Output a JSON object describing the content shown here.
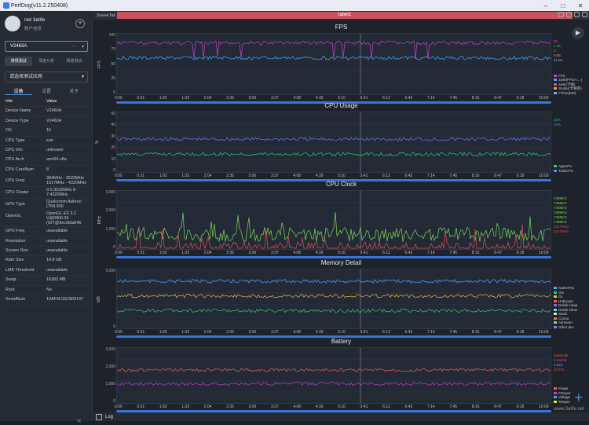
{
  "window": {
    "title": "PerfDog(v11.2.250408)"
  },
  "user": {
    "name": "net 3elife",
    "sub": "账户信息"
  },
  "device": {
    "name": "V2463A"
  },
  "mode_tabs": [
    "常规测试",
    "深度分析",
    "网络测试"
  ],
  "app_select": {
    "placeholder": "请选择测试应用"
  },
  "info_tabs": [
    "设备",
    "设置",
    "关于"
  ],
  "info_header": {
    "k": "Info",
    "v": "Value"
  },
  "info_rows": [
    {
      "k": "Device Name",
      "v": "V2460A"
    },
    {
      "k": "Device Type",
      "v": "V2463A"
    },
    {
      "k": "OS",
      "v": "15"
    },
    {
      "k": "CPU Type",
      "v": "sun"
    },
    {
      "k": "CPU Info",
      "v": "unknown"
    },
    {
      "k": "CPU Arch",
      "v": "arm64-v8a"
    },
    {
      "k": "CPU CoreNum",
      "v": "8"
    },
    {
      "k": "CPU Freq",
      "v": "384MHz - 3532MHz 1017MHz - 4320MHz"
    },
    {
      "k": "CPU Cluster",
      "v": "0-5:3532MHz 6-7:4320MHz"
    },
    {
      "k": "GPU Type",
      "v": "Qualcomm Adreno (TM) 830"
    },
    {
      "k": "OpenGL",
      "v": "OpenGL ES 3.2 V@0800.34 (GIT@3ec0bfa64b"
    },
    {
      "k": "GPU Freq",
      "v": "unavailable"
    },
    {
      "k": "Resolution",
      "v": "unavailable"
    },
    {
      "k": "Screen Size",
      "v": "unavailable"
    },
    {
      "k": "Ram Size",
      "v": "14.8 GB"
    },
    {
      "k": "LMK Threshold",
      "v": "unavailable"
    },
    {
      "k": "Swap",
      "v": "16383 MB"
    },
    {
      "k": "Root",
      "v": "No"
    },
    {
      "k": "SerialNum",
      "v": "10AF4U19JS0014T"
    }
  ],
  "scene": {
    "tab": "SceneTab",
    "label": "label1"
  },
  "x_ticks": [
    "0:00",
    "0:31",
    "1:02",
    "1:33",
    "2:04",
    "2:35",
    "3:06",
    "3:37",
    "4:08",
    "4:39",
    "5:10",
    "5:41",
    "6:12",
    "6:43",
    "7:14",
    "7:45",
    "8:16",
    "8:47",
    "9:18",
    "10:00"
  ],
  "charts": [
    {
      "title": "FPS",
      "ylabel": "FPS",
      "yticks": [
        "100",
        "75",
        "50",
        "25",
        "0"
      ],
      "legend": [
        "FPS",
        "Jank(FPS>=...)",
        "Jank(卡顿)",
        "Stutter(卡顿率)",
        "FTime(MS)"
      ],
      "right_values": [
        "90",
        "1.16",
        "0",
        "0.05",
        "41.93"
      ]
    },
    {
      "title": "CPU Usage",
      "ylabel": "%",
      "yticks": [
        "50",
        "40",
        "30",
        "20",
        "10",
        "0"
      ],
      "legend": [
        "AppCPU",
        "TotalCPU"
      ],
      "right_values": [
        "21%",
        "34%"
      ]
    },
    {
      "title": "CPU Clock",
      "ylabel": "MHz",
      "yticks": [
        "3,000",
        "2,000",
        "1,000",
        "0"
      ],
      "legend": [],
      "right_values": [
        "748MHz",
        "748MHz",
        "748MHz",
        "748MHz",
        "748MHz",
        "748MHz",
        "1017MHz",
        "1017MHz"
      ]
    },
    {
      "title": "Memory Detail",
      "ylabel": "MB",
      "yticks": [
        "5,000",
        "0"
      ],
      "legend": [
        "NativePss",
        "Gfx",
        "GL",
        "Unknown",
        "Dalvik Heap",
        "Dalvik Other",
        "Stack",
        "Cursor",
        "Ashmem",
        "Other dev"
      ],
      "right_values": []
    },
    {
      "title": "Battery",
      "ylabel": "",
      "yticks": [
        "3,000",
        "2,000",
        "1,000",
        "0"
      ],
      "legend": [
        "Power",
        "FPower",
        "Voltage",
        "Temper"
      ],
      "right_values": [
        "2160mW",
        "0.30mW",
        "3.82V",
        "37.5°C"
      ]
    }
  ],
  "status": {
    "log": "Log"
  },
  "watermark": "www.3elife.net",
  "colors": {
    "fps": "#c93fcf",
    "cpu_app": "#2ecc71",
    "cpu_total": "#6b7bff",
    "clock_green": "#7ed957",
    "clock_red": "#e05050",
    "battery": "#e8604c",
    "accent": "#3b74d6"
  }
}
